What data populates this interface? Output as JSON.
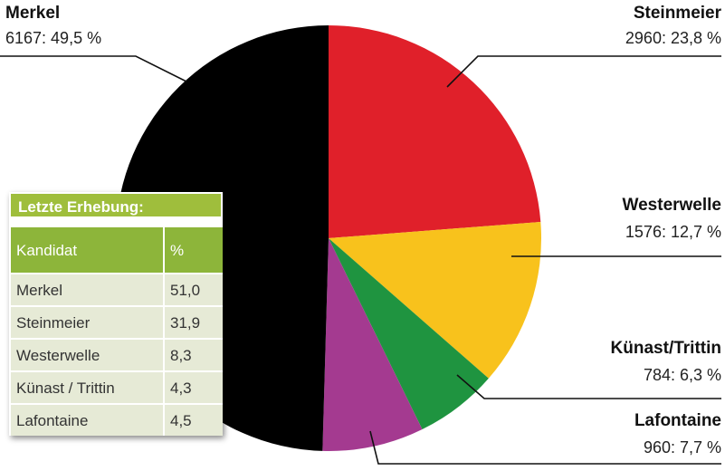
{
  "chart_data": {
    "type": "pie",
    "categories": [
      "Steinmeier",
      "Westerwelle",
      "Künast/Trittin",
      "Lafontaine",
      "Merkel"
    ],
    "values": [
      2960,
      1576,
      784,
      960,
      6167
    ],
    "value_labels": [
      "2960: 23,8 %",
      "1576: 12,7 %",
      "784: 6,3 %",
      "960: 7,7 %",
      "6167: 49,5 %"
    ],
    "colors": [
      "#e0202a",
      "#f8c21c",
      "#1f9440",
      "#a43a90",
      "#000000"
    ],
    "table": {
      "title": "Letzte Erhebung:",
      "header": [
        "Kandidat",
        "%"
      ],
      "rows": [
        [
          "Merkel",
          "51,0"
        ],
        [
          "Steinmeier",
          "31,9"
        ],
        [
          "Westerwelle",
          "8,3"
        ],
        [
          "Künast / Trittin",
          "4,3"
        ],
        [
          "Lafontaine",
          "4,5"
        ]
      ]
    }
  }
}
